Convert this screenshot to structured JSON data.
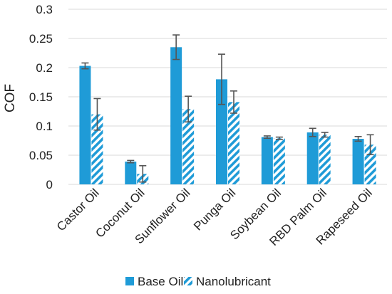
{
  "chart_data": {
    "type": "bar",
    "title": "",
    "xlabel": "",
    "ylabel": "COF",
    "ylim": [
      0,
      0.3
    ],
    "yticks": [
      "0",
      "0.05",
      "0.1",
      "0.15",
      "0.2",
      "0.25",
      "0.3"
    ],
    "grid": true,
    "legend_position": "bottom",
    "categories": [
      "Castor Oil",
      "Coconut Oil",
      "Sunflower Oil",
      "Punga Oil",
      "Soybean Oil",
      "RBD Palm Oil",
      "Rapeseed Oil"
    ],
    "series": [
      {
        "name": "Base Oil",
        "color": "#1f9bd7",
        "pattern": "solid",
        "values": [
          0.203,
          0.039,
          0.235,
          0.18,
          0.081,
          0.089,
          0.078
        ],
        "errors": [
          0.005,
          0.002,
          0.021,
          0.043,
          0.002,
          0.007,
          0.004
        ]
      },
      {
        "name": "Nanolubricant",
        "color": "#1f9bd7",
        "pattern": "diagonal-hatch",
        "values": [
          0.12,
          0.018,
          0.129,
          0.141,
          0.079,
          0.085,
          0.068
        ],
        "errors": [
          0.027,
          0.014,
          0.022,
          0.019,
          0.002,
          0.004,
          0.017
        ]
      }
    ]
  }
}
